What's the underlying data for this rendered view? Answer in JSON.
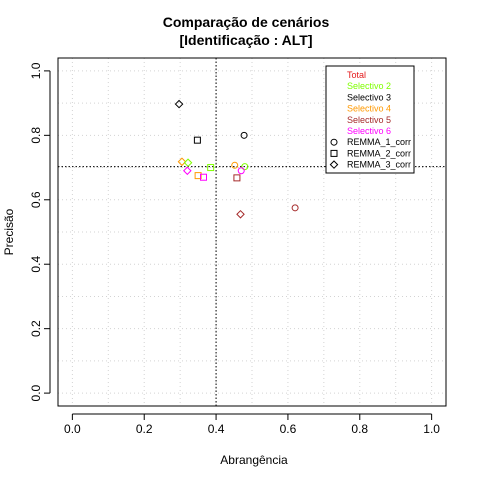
{
  "chart_data": {
    "type": "scatter",
    "title": "Comparação de cenários",
    "subtitle": "[Identificação : ALT]",
    "xlabel": "Abrangência",
    "ylabel": "Precisão",
    "xlim": [
      -0.04,
      1.04
    ],
    "ylim": [
      -0.04,
      1.04
    ],
    "x_ticks": [
      0.0,
      0.2,
      0.4,
      0.6,
      0.8,
      1.0
    ],
    "x_tick_labels": [
      "0.0",
      "0.2",
      "0.4",
      "0.6",
      "0.8",
      "1.0"
    ],
    "y_ticks": [
      0.0,
      0.2,
      0.4,
      0.6,
      0.8,
      1.0
    ],
    "y_tick_labels": [
      "0.0",
      "0.2",
      "0.4",
      "0.6",
      "0.8",
      "1.0"
    ],
    "grid": true,
    "reference_lines": {
      "x": 0.4,
      "y": 0.703
    },
    "legend_position": "top-right",
    "color_legend": [
      {
        "label": "Total",
        "color": "#e41a1c"
      },
      {
        "label": "Selectivo 2",
        "color": "#7fff00"
      },
      {
        "label": "Selectivo 3",
        "color": "#000000"
      },
      {
        "label": "Selectivo 4",
        "color": "#ff9900"
      },
      {
        "label": "Selectivo 5",
        "color": "#a52a2a"
      },
      {
        "label": "Selectivo 6",
        "color": "#ff00ff"
      }
    ],
    "shape_legend": [
      {
        "label": "REMMA_1_corr",
        "shape": "circle"
      },
      {
        "label": "REMMA_2_corr",
        "shape": "square"
      },
      {
        "label": "REMMA_3_corr",
        "shape": "diamond"
      }
    ],
    "points": [
      {
        "x": 0.297,
        "y": 0.897,
        "shape": "diamond",
        "color": "#000000"
      },
      {
        "x": 0.348,
        "y": 0.785,
        "shape": "square",
        "color": "#000000"
      },
      {
        "x": 0.478,
        "y": 0.8,
        "shape": "circle",
        "color": "#000000"
      },
      {
        "x": 0.305,
        "y": 0.718,
        "shape": "diamond",
        "color": "#ff9900"
      },
      {
        "x": 0.322,
        "y": 0.715,
        "shape": "diamond",
        "color": "#7fff00"
      },
      {
        "x": 0.32,
        "y": 0.69,
        "shape": "diamond",
        "color": "#ff00ff"
      },
      {
        "x": 0.35,
        "y": 0.675,
        "shape": "square",
        "color": "#ff9900"
      },
      {
        "x": 0.365,
        "y": 0.67,
        "shape": "square",
        "color": "#ff00ff"
      },
      {
        "x": 0.385,
        "y": 0.7,
        "shape": "square",
        "color": "#7fff00"
      },
      {
        "x": 0.452,
        "y": 0.707,
        "shape": "circle",
        "color": "#ff9900"
      },
      {
        "x": 0.48,
        "y": 0.703,
        "shape": "circle",
        "color": "#7fff00"
      },
      {
        "x": 0.47,
        "y": 0.69,
        "shape": "circle",
        "color": "#ff00ff"
      },
      {
        "x": 0.458,
        "y": 0.668,
        "shape": "square",
        "color": "#a52a2a"
      },
      {
        "x": 0.468,
        "y": 0.555,
        "shape": "diamond",
        "color": "#a52a2a"
      },
      {
        "x": 0.62,
        "y": 0.575,
        "shape": "circle",
        "color": "#a52a2a"
      }
    ]
  }
}
